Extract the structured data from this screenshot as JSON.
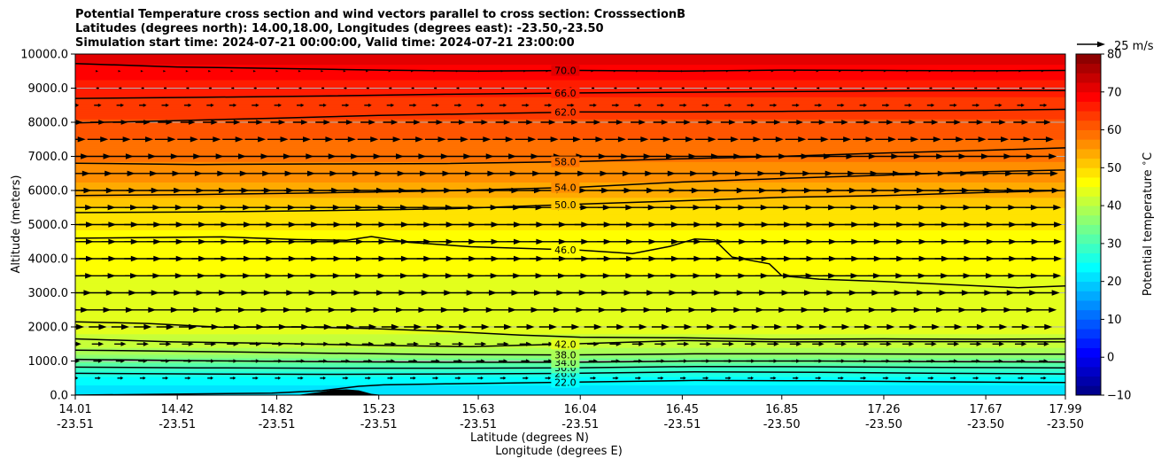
{
  "chart_data": {
    "type": "contourf",
    "title_lines": [
      "Potential Temperature cross section and wind vectors parallel to cross section: CrosssectionB",
      "Latitudes (degrees north): 14.00,18.00, Longitudes (degrees east): -23.50,-23.50",
      "Simulation start time: 2024-07-21 00:00:00, Valid time: 2024-07-21 23:00:00"
    ],
    "ylabel": "Altitude (meters)",
    "xlabel_lat": "Latitude (degrees N)",
    "xlabel_lon": "Longitude (degrees E)",
    "xlim": [
      14.01,
      17.99
    ],
    "ylim": [
      0,
      10000
    ],
    "grid": "horizontal",
    "y_ticks": [
      {
        "value": 0,
        "label": "0.0"
      },
      {
        "value": 1000,
        "label": "1000.0"
      },
      {
        "value": 2000,
        "label": "2000.0"
      },
      {
        "value": 3000,
        "label": "3000.0"
      },
      {
        "value": 4000,
        "label": "4000.0"
      },
      {
        "value": 5000,
        "label": "5000.0"
      },
      {
        "value": 6000,
        "label": "6000.0"
      },
      {
        "value": 7000,
        "label": "7000.0"
      },
      {
        "value": 8000,
        "label": "8000.0"
      },
      {
        "value": 9000,
        "label": "9000.0"
      },
      {
        "value": 10000,
        "label": "10000.0"
      }
    ],
    "x_ticks": [
      {
        "value": 14.01,
        "lat": "14.01",
        "lon": "-23.51"
      },
      {
        "value": 14.42,
        "lat": "14.42",
        "lon": "-23.51"
      },
      {
        "value": 14.82,
        "lat": "14.82",
        "lon": "-23.51"
      },
      {
        "value": 15.23,
        "lat": "15.23",
        "lon": "-23.51"
      },
      {
        "value": 15.63,
        "lat": "15.63",
        "lon": "-23.51"
      },
      {
        "value": 16.04,
        "lat": "16.04",
        "lon": "-23.51"
      },
      {
        "value": 16.45,
        "lat": "16.45",
        "lon": "-23.51"
      },
      {
        "value": 16.85,
        "lat": "16.85",
        "lon": "-23.50"
      },
      {
        "value": 17.26,
        "lat": "17.26",
        "lon": "-23.50"
      },
      {
        "value": 17.67,
        "lat": "17.67",
        "lon": "-23.50"
      },
      {
        "value": 17.99,
        "lat": "17.99",
        "lon": "-23.50"
      }
    ],
    "colorbar": {
      "label": "Potential temperature $^\\circ$C",
      "min": -10,
      "max": 80,
      "step": 2.5,
      "ticks": [
        {
          "value": -10,
          "label": "−10"
        },
        {
          "value": 0,
          "label": "0"
        },
        {
          "value": 10,
          "label": "10"
        },
        {
          "value": 20,
          "label": "20"
        },
        {
          "value": 30,
          "label": "30"
        },
        {
          "value": 40,
          "label": "40"
        },
        {
          "value": 50,
          "label": "50"
        },
        {
          "value": 60,
          "label": "60"
        },
        {
          "value": 70,
          "label": "70"
        },
        {
          "value": 80,
          "label": "80"
        }
      ]
    },
    "quiver_key": {
      "label": "25 m/s",
      "speed": 25
    },
    "temperature_profile": [
      [
        0,
        22
      ],
      [
        300,
        22.5
      ],
      [
        500,
        24
      ],
      [
        700,
        27
      ],
      [
        900,
        31
      ],
      [
        1050,
        34
      ],
      [
        1250,
        38
      ],
      [
        1600,
        42
      ],
      [
        2000,
        43
      ],
      [
        3000,
        44.5
      ],
      [
        4000,
        45.5
      ],
      [
        4500,
        46
      ],
      [
        5000,
        48
      ],
      [
        5500,
        50
      ],
      [
        6000,
        54
      ],
      [
        7000,
        58
      ],
      [
        8000,
        62
      ],
      [
        9000,
        66
      ],
      [
        9700,
        70
      ],
      [
        10000,
        72
      ]
    ],
    "contours": [
      {
        "level": 22.0,
        "label": "22.0",
        "points": [
          [
            14.01,
            0
          ],
          [
            14.8,
            60
          ],
          [
            15.0,
            130
          ],
          [
            15.15,
            260
          ],
          [
            15.25,
            300
          ],
          [
            15.5,
            330
          ],
          [
            16.0,
            380
          ],
          [
            16.5,
            430
          ],
          [
            17.0,
            420
          ],
          [
            17.5,
            390
          ],
          [
            17.99,
            370
          ]
        ]
      },
      {
        "level": 26.0,
        "label": "26.0",
        "points": [
          [
            14.01,
            640
          ],
          [
            14.5,
            620
          ],
          [
            15.0,
            610
          ],
          [
            15.5,
            620
          ],
          [
            16.0,
            640
          ],
          [
            16.5,
            680
          ],
          [
            17.0,
            670
          ],
          [
            17.5,
            640
          ],
          [
            17.99,
            620
          ]
        ]
      },
      {
        "level": 30.0,
        "label": "30.0",
        "points": [
          [
            14.01,
            820
          ],
          [
            14.5,
            800
          ],
          [
            15.0,
            790
          ],
          [
            15.5,
            790
          ],
          [
            16.0,
            800
          ],
          [
            16.5,
            840
          ],
          [
            17.0,
            830
          ],
          [
            17.5,
            810
          ],
          [
            17.99,
            800
          ]
        ]
      },
      {
        "level": 34.0,
        "label": "34.0",
        "points": [
          [
            14.01,
            1050
          ],
          [
            14.5,
            1010
          ],
          [
            15.0,
            980
          ],
          [
            15.5,
            960
          ],
          [
            16.0,
            960
          ],
          [
            16.5,
            1000
          ],
          [
            17.0,
            1000
          ],
          [
            17.5,
            980
          ],
          [
            17.99,
            970
          ]
        ]
      },
      {
        "level": 38.0,
        "label": "38.0",
        "points": [
          [
            14.01,
            1320
          ],
          [
            14.5,
            1280
          ],
          [
            15.0,
            1230
          ],
          [
            15.5,
            1190
          ],
          [
            16.0,
            1180
          ],
          [
            16.5,
            1210
          ],
          [
            17.0,
            1210
          ],
          [
            17.5,
            1200
          ],
          [
            17.99,
            1200
          ]
        ]
      },
      {
        "level": 42.0,
        "label": "42.0",
        "points": [
          [
            14.01,
            1650
          ],
          [
            14.4,
            1560
          ],
          [
            14.8,
            1520
          ],
          [
            15.2,
            1460
          ],
          [
            15.6,
            1420
          ],
          [
            16.0,
            1500
          ],
          [
            16.45,
            1600
          ],
          [
            16.85,
            1560
          ],
          [
            17.26,
            1570
          ],
          [
            17.67,
            1570
          ],
          [
            17.99,
            1560
          ]
        ]
      },
      {
        "level": 44.0,
        "label": "",
        "points": [
          [
            14.01,
            2150
          ],
          [
            14.3,
            2100
          ],
          [
            14.6,
            1990
          ],
          [
            14.9,
            2000
          ],
          [
            15.2,
            1950
          ],
          [
            15.5,
            1870
          ],
          [
            15.8,
            1760
          ],
          [
            16.04,
            1700
          ],
          [
            16.45,
            1680
          ],
          [
            16.8,
            1640
          ],
          [
            17.26,
            1650
          ],
          [
            17.67,
            1640
          ],
          [
            17.99,
            1650
          ]
        ]
      },
      {
        "level": 46.0,
        "label": "46.0",
        "points": [
          [
            14.01,
            4600
          ],
          [
            14.3,
            4620
          ],
          [
            14.6,
            4640
          ],
          [
            14.9,
            4560
          ],
          [
            15.1,
            4540
          ],
          [
            15.2,
            4650
          ],
          [
            15.35,
            4480
          ],
          [
            15.6,
            4350
          ],
          [
            16.04,
            4250
          ],
          [
            16.25,
            4150
          ],
          [
            16.4,
            4360
          ],
          [
            16.5,
            4580
          ],
          [
            16.58,
            4550
          ],
          [
            16.65,
            4050
          ],
          [
            16.8,
            3850
          ],
          [
            16.85,
            3500
          ],
          [
            17.0,
            3400
          ],
          [
            17.26,
            3330
          ],
          [
            17.5,
            3250
          ],
          [
            17.8,
            3150
          ],
          [
            17.99,
            3200
          ]
        ]
      },
      {
        "level": 50.0,
        "label": "50.0",
        "points": [
          [
            14.01,
            5350
          ],
          [
            14.5,
            5370
          ],
          [
            15.0,
            5410
          ],
          [
            15.5,
            5460
          ],
          [
            16.04,
            5600
          ],
          [
            16.45,
            5700
          ],
          [
            16.85,
            5800
          ],
          [
            17.26,
            5850
          ],
          [
            17.67,
            5940
          ],
          [
            17.99,
            6000
          ]
        ]
      },
      {
        "level": 54.0,
        "label": "54.0",
        "points": [
          [
            14.01,
            5850
          ],
          [
            14.5,
            5880
          ],
          [
            15.0,
            5930
          ],
          [
            15.5,
            5990
          ],
          [
            16.04,
            6100
          ],
          [
            16.45,
            6250
          ],
          [
            16.85,
            6350
          ],
          [
            17.26,
            6450
          ],
          [
            17.67,
            6550
          ],
          [
            17.99,
            6600
          ]
        ]
      },
      {
        "level": 58.0,
        "label": "58.0",
        "points": [
          [
            14.01,
            6800
          ],
          [
            14.5,
            6760
          ],
          [
            15.0,
            6780
          ],
          [
            15.5,
            6790
          ],
          [
            16.04,
            6850
          ],
          [
            16.45,
            6930
          ],
          [
            16.85,
            7000
          ],
          [
            17.26,
            7100
          ],
          [
            17.67,
            7180
          ],
          [
            17.99,
            7250
          ]
        ]
      },
      {
        "level": 62.0,
        "label": "62.0",
        "points": [
          [
            14.01,
            7980
          ],
          [
            14.42,
            8050
          ],
          [
            14.82,
            8120
          ],
          [
            15.23,
            8200
          ],
          [
            15.63,
            8250
          ],
          [
            16.04,
            8300
          ],
          [
            16.45,
            8300
          ],
          [
            16.85,
            8320
          ],
          [
            17.26,
            8340
          ],
          [
            17.67,
            8350
          ],
          [
            17.99,
            8380
          ]
        ]
      },
      {
        "level": 66.0,
        "label": "66.0",
        "points": [
          [
            14.01,
            8700
          ],
          [
            14.5,
            8730
          ],
          [
            15.0,
            8770
          ],
          [
            15.5,
            8820
          ],
          [
            16.04,
            8860
          ],
          [
            16.45,
            8880
          ],
          [
            16.85,
            8900
          ],
          [
            17.26,
            8920
          ],
          [
            17.67,
            8930
          ],
          [
            17.99,
            8930
          ]
        ]
      },
      {
        "level": 70.0,
        "label": "70.0",
        "points": [
          [
            14.01,
            9720
          ],
          [
            14.42,
            9620
          ],
          [
            14.82,
            9580
          ],
          [
            15.23,
            9530
          ],
          [
            15.63,
            9500
          ],
          [
            16.04,
            9520
          ],
          [
            16.45,
            9500
          ],
          [
            16.85,
            9530
          ],
          [
            17.26,
            9520
          ],
          [
            17.67,
            9510
          ],
          [
            17.99,
            9520
          ]
        ]
      }
    ],
    "terrain": [
      [
        14.9,
        0
      ],
      [
        15.0,
        100
      ],
      [
        15.05,
        160
      ],
      [
        15.1,
        170
      ],
      [
        15.15,
        140
      ],
      [
        15.2,
        40
      ],
      [
        15.25,
        0
      ]
    ],
    "wind": {
      "x_start": 14.01,
      "x_step": 0.0905,
      "x_count": 44,
      "levels": [
        {
          "z": 500,
          "speed": 4
        },
        {
          "z": 1000,
          "speed": 6
        },
        {
          "z": 1500,
          "speed": 8
        },
        {
          "z": 2000,
          "speed": 12
        },
        {
          "z": 2500,
          "speed": 18
        },
        {
          "z": 3000,
          "speed": 22
        },
        {
          "z": 3500,
          "speed": 24
        },
        {
          "z": 4000,
          "speed": 25
        },
        {
          "z": 4500,
          "speed": 25
        },
        {
          "z": 5000,
          "speed": 25
        },
        {
          "z": 5500,
          "speed": 24
        },
        {
          "z": 6000,
          "speed": 22
        },
        {
          "z": 6500,
          "speed": 20
        },
        {
          "z": 7000,
          "speed": 18
        },
        {
          "z": 7500,
          "speed": 14
        },
        {
          "z": 8000,
          "speed": 10
        },
        {
          "z": 8500,
          "speed": 5
        },
        {
          "z": 9000,
          "speed": 2
        },
        {
          "z": 9500,
          "speed": 1
        }
      ]
    }
  }
}
